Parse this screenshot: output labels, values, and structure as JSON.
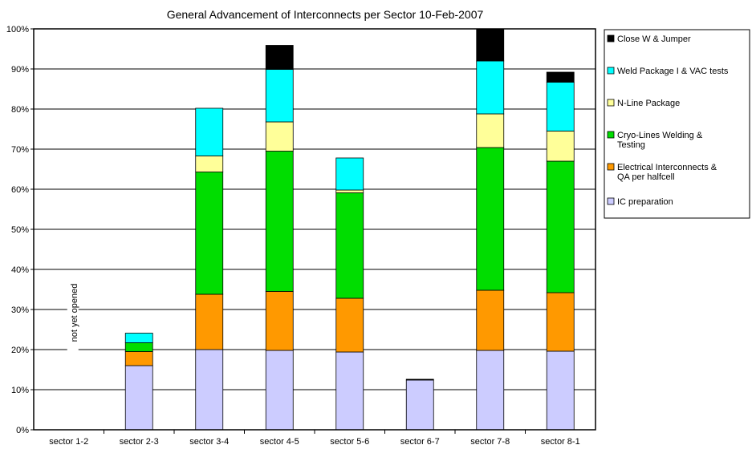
{
  "chart_data": {
    "type": "bar",
    "stacked": true,
    "title": "General Advancement of Interconnects per Sector 10-Feb-2007",
    "xlabel": "",
    "ylabel": "",
    "ylim": [
      0,
      100
    ],
    "y_ticks": [
      "0%",
      "10%",
      "20%",
      "30%",
      "40%",
      "50%",
      "60%",
      "70%",
      "80%",
      "90%",
      "100%"
    ],
    "grid": true,
    "legend_position": "right",
    "categories": [
      "sector 1-2",
      "sector 2-3",
      "sector 3-4",
      "sector 4-5",
      "sector 5-6",
      "sector 6-7",
      "sector 7-8",
      "sector 8-1"
    ],
    "annotation": {
      "text": "not yet opened",
      "category": "sector 1-2"
    },
    "series": [
      {
        "name": "IC preparation",
        "color": "#ccccff",
        "values": [
          0,
          16,
          20,
          19.8,
          19.4,
          12.4,
          19.8,
          19.6
        ]
      },
      {
        "name": "Electrical Interconnects & QA per halfcell",
        "label_lines": [
          "Electrical Interconnects &",
          "QA per halfcell"
        ],
        "color": "#ff9900",
        "values": [
          0,
          3.5,
          13.8,
          14.7,
          13.4,
          0,
          15,
          14.6
        ]
      },
      {
        "name": "Cryo-Lines Welding & Testing",
        "label_lines": [
          "Cryo-Lines Welding &",
          "Testing"
        ],
        "color": "#00dd00",
        "values": [
          0,
          2.2,
          30.5,
          35,
          26.3,
          0,
          35.6,
          32.8
        ]
      },
      {
        "name": "N-Line Package",
        "color": "#ffff99",
        "values": [
          0,
          0,
          4,
          7.3,
          0.7,
          0,
          8.4,
          7.5
        ]
      },
      {
        "name": "Weld Package I & VAC tests",
        "color": "#00ffff",
        "values": [
          0,
          2.4,
          11.9,
          13.1,
          8,
          0,
          13.2,
          12.2
        ]
      },
      {
        "name": "Close W & Jumper",
        "color": "#000000",
        "values": [
          0,
          0,
          0,
          6,
          0,
          0.2,
          8,
          2.5
        ]
      }
    ]
  }
}
